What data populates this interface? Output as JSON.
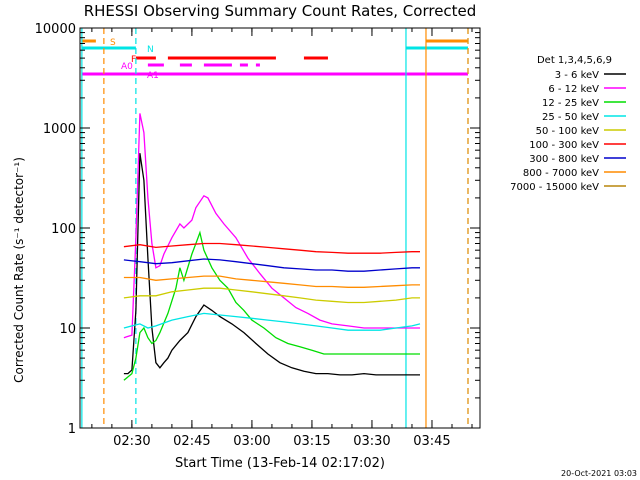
{
  "chart_data": {
    "type": "line",
    "title": "RHESSI Observing Summary Count Rates, Corrected",
    "xlabel": "Start Time (13-Feb-14 02:17:02)",
    "ylabel": "Corrected Count Rate (s⁻¹ detector⁻¹)",
    "yscale": "log",
    "ylim": [
      1,
      10000
    ],
    "xlim": [
      "02:17:02",
      "03:57:00"
    ],
    "x_ticks": [
      "02:30",
      "02:45",
      "03:00",
      "03:15",
      "03:30",
      "03:45"
    ],
    "y_ticks": [
      "1",
      "10",
      "100",
      "1000",
      "10000"
    ],
    "grid": false,
    "legend_position": "right",
    "legend_title": "Det 1,3,4,5,6,9",
    "footer_date": "20-Oct-2021 03:03",
    "colors": {
      "s_bar": "#ff8c00",
      "n_bar": "#00e5e5",
      "f_bar": "#ff0000",
      "a_bar": "#ff00ff"
    },
    "flags": [
      {
        "label": "S",
        "color": "#ff8c00",
        "segments": [
          [
            "02:17:30",
            "02:21:00"
          ],
          [
            "03:43:30",
            "03:54:00"
          ]
        ]
      },
      {
        "label": "N",
        "color": "#00e5e5",
        "segments": [
          [
            "02:17:30",
            "02:31:00"
          ],
          [
            "03:38:30",
            "03:54:00"
          ]
        ]
      },
      {
        "label": "F",
        "color": "#ff0000",
        "segments": [
          [
            "02:31:00",
            "02:36:00"
          ],
          [
            "02:39:00",
            "03:06:00"
          ],
          [
            "03:13:00",
            "03:19:00"
          ]
        ]
      },
      {
        "label": "A0",
        "color": "#ff00ff",
        "segments": [
          [
            "02:34:00",
            "02:38:00"
          ],
          [
            "02:42:00",
            "02:45:00"
          ],
          [
            "02:48:00",
            "02:55:00"
          ],
          [
            "02:57:00",
            "02:59:00"
          ],
          [
            "03:01:00",
            "03:02:00"
          ]
        ]
      },
      {
        "label": "A1",
        "color": "#ff00ff",
        "segments": [
          [
            "02:17:30",
            "03:54:00"
          ]
        ]
      }
    ],
    "vertical_lines": [
      {
        "time": "02:17:30",
        "color": "#00e5e5",
        "style": "solid"
      },
      {
        "time": "02:23:00",
        "color": "#ff8c00",
        "style": "dashed"
      },
      {
        "time": "02:31:00",
        "color": "#00e5e5",
        "style": "dashed"
      },
      {
        "time": "03:38:30",
        "color": "#00e5e5",
        "style": "solid"
      },
      {
        "time": "03:43:30",
        "color": "#ff8c00",
        "style": "solid"
      },
      {
        "time": "03:54:00",
        "color": "#00e5e5",
        "style": "dashed"
      },
      {
        "time": "03:54:00",
        "color": "#ff8c00",
        "style": "dashed"
      }
    ],
    "series": [
      {
        "name": "3 - 6 keV",
        "color": "#000000",
        "points": [
          [
            "02:28:00",
            3.5
          ],
          [
            "02:29:00",
            3.5
          ],
          [
            "02:30:00",
            3.8
          ],
          [
            "02:31:00",
            15
          ],
          [
            "02:32:00",
            560
          ],
          [
            "02:33:00",
            300
          ],
          [
            "02:34:00",
            50
          ],
          [
            "02:35:00",
            10
          ],
          [
            "02:36:00",
            4.5
          ],
          [
            "02:37:00",
            4
          ],
          [
            "02:38:00",
            4.5
          ],
          [
            "02:39:00",
            5
          ],
          [
            "02:40:00",
            6
          ],
          [
            "02:42:00",
            7.5
          ],
          [
            "02:44:00",
            9
          ],
          [
            "02:46:00",
            13
          ],
          [
            "02:48:00",
            17
          ],
          [
            "02:50:00",
            15
          ],
          [
            "02:52:00",
            13
          ],
          [
            "02:55:00",
            11
          ],
          [
            "02:58:00",
            9
          ],
          [
            "03:01:00",
            7
          ],
          [
            "03:04:00",
            5.5
          ],
          [
            "03:07:00",
            4.5
          ],
          [
            "03:10:00",
            4
          ],
          [
            "03:13:00",
            3.7
          ],
          [
            "03:16:00",
            3.5
          ],
          [
            "03:19:00",
            3.5
          ],
          [
            "03:22:00",
            3.4
          ],
          [
            "03:25:00",
            3.4
          ],
          [
            "03:28:00",
            3.5
          ],
          [
            "03:31:00",
            3.4
          ],
          [
            "03:34:00",
            3.4
          ],
          [
            "03:37:00",
            3.4
          ],
          [
            "03:40:00",
            3.4
          ],
          [
            "03:42:00",
            3.4
          ]
        ]
      },
      {
        "name": "6 - 12 keV",
        "color": "#ff00ff",
        "points": [
          [
            "02:28:00",
            8
          ],
          [
            "02:30:00",
            8.5
          ],
          [
            "02:31:00",
            80
          ],
          [
            "02:32:00",
            1400
          ],
          [
            "02:33:00",
            900
          ],
          [
            "02:34:00",
            200
          ],
          [
            "02:35:00",
            70
          ],
          [
            "02:36:00",
            40
          ],
          [
            "02:37:00",
            42
          ],
          [
            "02:38:00",
            55
          ],
          [
            "02:40:00",
            80
          ],
          [
            "02:42:00",
            110
          ],
          [
            "02:43:00",
            100
          ],
          [
            "02:45:00",
            120
          ],
          [
            "02:46:00",
            160
          ],
          [
            "02:48:00",
            210
          ],
          [
            "02:49:00",
            200
          ],
          [
            "02:51:00",
            140
          ],
          [
            "02:53:00",
            110
          ],
          [
            "02:56:00",
            80
          ],
          [
            "02:59:00",
            50
          ],
          [
            "03:02:00",
            35
          ],
          [
            "03:05:00",
            25
          ],
          [
            "03:08:00",
            20
          ],
          [
            "03:11:00",
            16
          ],
          [
            "03:14:00",
            14
          ],
          [
            "03:17:00",
            12
          ],
          [
            "03:20:00",
            11
          ],
          [
            "03:24:00",
            10.5
          ],
          [
            "03:28:00",
            10
          ],
          [
            "03:32:00",
            10
          ],
          [
            "03:36:00",
            10
          ],
          [
            "03:40:00",
            10
          ],
          [
            "03:42:00",
            10
          ]
        ]
      },
      {
        "name": "12 - 25 keV",
        "color": "#00dd00",
        "points": [
          [
            "02:28:00",
            3
          ],
          [
            "02:30:00",
            3.5
          ],
          [
            "02:31:00",
            5
          ],
          [
            "02:32:00",
            9
          ],
          [
            "02:33:00",
            10
          ],
          [
            "02:34:00",
            8
          ],
          [
            "02:35:00",
            7
          ],
          [
            "02:36:00",
            7.5
          ],
          [
            "02:37:00",
            9
          ],
          [
            "02:39:00",
            14
          ],
          [
            "02:41:00",
            25
          ],
          [
            "02:42:00",
            40
          ],
          [
            "02:43:00",
            30
          ],
          [
            "02:45:00",
            55
          ],
          [
            "02:46:00",
            70
          ],
          [
            "02:47:00",
            90
          ],
          [
            "02:48:00",
            60
          ],
          [
            "02:50:00",
            40
          ],
          [
            "02:52:00",
            30
          ],
          [
            "02:54:00",
            25
          ],
          [
            "02:56:00",
            18
          ],
          [
            "02:58:00",
            15
          ],
          [
            "03:00:00",
            12
          ],
          [
            "03:03:00",
            10
          ],
          [
            "03:06:00",
            8
          ],
          [
            "03:09:00",
            7
          ],
          [
            "03:12:00",
            6.5
          ],
          [
            "03:15:00",
            6
          ],
          [
            "03:18:00",
            5.5
          ],
          [
            "03:22:00",
            5.5
          ],
          [
            "03:26:00",
            5.5
          ],
          [
            "03:30:00",
            5.5
          ],
          [
            "03:34:00",
            5.5
          ],
          [
            "03:38:00",
            5.5
          ],
          [
            "03:42:00",
            5.5
          ]
        ]
      },
      {
        "name": "25 - 50 keV",
        "color": "#00e5e5",
        "points": [
          [
            "02:28:00",
            10
          ],
          [
            "02:30:00",
            10.5
          ],
          [
            "02:32:00",
            11
          ],
          [
            "02:34:00",
            10
          ],
          [
            "02:36:00",
            10.5
          ],
          [
            "02:40:00",
            12
          ],
          [
            "02:44:00",
            13
          ],
          [
            "02:48:00",
            14
          ],
          [
            "02:52:00",
            13.5
          ],
          [
            "02:56:00",
            13
          ],
          [
            "03:00:00",
            12.5
          ],
          [
            "03:04:00",
            12
          ],
          [
            "03:08:00",
            11.5
          ],
          [
            "03:12:00",
            11
          ],
          [
            "03:16:00",
            10.5
          ],
          [
            "03:20:00",
            10
          ],
          [
            "03:24:00",
            9.5
          ],
          [
            "03:28:00",
            9.5
          ],
          [
            "03:32:00",
            9.5
          ],
          [
            "03:36:00",
            10
          ],
          [
            "03:40:00",
            10.5
          ],
          [
            "03:42:00",
            11
          ]
        ]
      },
      {
        "name": "50 - 100 keV",
        "color": "#cccc00",
        "points": [
          [
            "02:28:00",
            20
          ],
          [
            "02:32:00",
            21
          ],
          [
            "02:36:00",
            21
          ],
          [
            "02:40:00",
            23
          ],
          [
            "02:44:00",
            24
          ],
          [
            "02:48:00",
            25
          ],
          [
            "02:52:00",
            25
          ],
          [
            "02:56:00",
            24
          ],
          [
            "03:00:00",
            23
          ],
          [
            "03:04:00",
            22
          ],
          [
            "03:08:00",
            21
          ],
          [
            "03:12:00",
            20
          ],
          [
            "03:16:00",
            19
          ],
          [
            "03:20:00",
            18.5
          ],
          [
            "03:24:00",
            18
          ],
          [
            "03:28:00",
            18
          ],
          [
            "03:32:00",
            18.5
          ],
          [
            "03:36:00",
            19
          ],
          [
            "03:40:00",
            20
          ],
          [
            "03:42:00",
            20
          ]
        ]
      },
      {
        "name": "100 - 300 keV",
        "color": "#ff0000",
        "points": [
          [
            "02:28:00",
            65
          ],
          [
            "02:32:00",
            68
          ],
          [
            "02:36:00",
            64
          ],
          [
            "02:40:00",
            66
          ],
          [
            "02:44:00",
            68
          ],
          [
            "02:48:00",
            70
          ],
          [
            "02:52:00",
            70
          ],
          [
            "02:56:00",
            68
          ],
          [
            "03:00:00",
            66
          ],
          [
            "03:04:00",
            64
          ],
          [
            "03:08:00",
            62
          ],
          [
            "03:12:00",
            60
          ],
          [
            "03:16:00",
            58
          ],
          [
            "03:20:00",
            57
          ],
          [
            "03:24:00",
            56
          ],
          [
            "03:28:00",
            56
          ],
          [
            "03:32:00",
            56
          ],
          [
            "03:36:00",
            57
          ],
          [
            "03:40:00",
            58
          ],
          [
            "03:42:00",
            58
          ]
        ]
      },
      {
        "name": "300 - 800 keV",
        "color": "#0000cc",
        "points": [
          [
            "02:28:00",
            48
          ],
          [
            "02:32:00",
            46
          ],
          [
            "02:36:00",
            44
          ],
          [
            "02:40:00",
            45
          ],
          [
            "02:44:00",
            47
          ],
          [
            "02:48:00",
            49
          ],
          [
            "02:52:00",
            48
          ],
          [
            "02:56:00",
            46
          ],
          [
            "03:00:00",
            44
          ],
          [
            "03:04:00",
            42
          ],
          [
            "03:08:00",
            40
          ],
          [
            "03:12:00",
            39
          ],
          [
            "03:16:00",
            38
          ],
          [
            "03:20:00",
            38
          ],
          [
            "03:24:00",
            37
          ],
          [
            "03:28:00",
            37
          ],
          [
            "03:32:00",
            38
          ],
          [
            "03:36:00",
            39
          ],
          [
            "03:40:00",
            40
          ],
          [
            "03:42:00",
            40
          ]
        ]
      },
      {
        "name": "800 - 7000 keV",
        "color": "#ff8c00",
        "points": [
          [
            "02:28:00",
            32
          ],
          [
            "02:32:00",
            32
          ],
          [
            "02:36:00",
            30
          ],
          [
            "02:40:00",
            31
          ],
          [
            "02:44:00",
            32
          ],
          [
            "02:48:00",
            33
          ],
          [
            "02:52:00",
            33
          ],
          [
            "02:56:00",
            31
          ],
          [
            "03:00:00",
            30
          ],
          [
            "03:04:00",
            29
          ],
          [
            "03:08:00",
            28
          ],
          [
            "03:12:00",
            27
          ],
          [
            "03:16:00",
            26
          ],
          [
            "03:20:00",
            26
          ],
          [
            "03:24:00",
            25.5
          ],
          [
            "03:28:00",
            25.5
          ],
          [
            "03:32:00",
            26
          ],
          [
            "03:36:00",
            26.5
          ],
          [
            "03:40:00",
            27
          ],
          [
            "03:42:00",
            27
          ]
        ]
      },
      {
        "name": "7000 - 15000 keV",
        "color": "#b8860b",
        "points": []
      }
    ]
  }
}
